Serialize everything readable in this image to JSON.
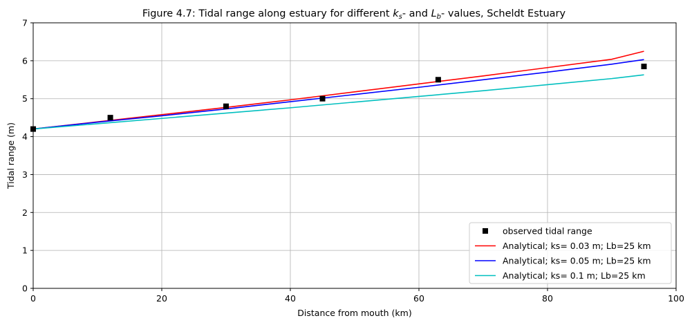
{
  "chart_data": {
    "type": "line",
    "title": {
      "prefix": "Figure 4.7: Tidal range along estuary for different ",
      "k": "k",
      "k_sub": "s",
      "middle": "- and ",
      "L": "L",
      "L_sub": "b",
      "suffix": "- values, Scheldt Estuary"
    },
    "xlabel": "Distance from mouth (km)",
    "ylabel": "Tidal range (m)",
    "xlim": [
      0,
      100
    ],
    "ylim": [
      0,
      7
    ],
    "xticks": [
      0,
      20,
      40,
      60,
      80,
      100
    ],
    "yticks": [
      0,
      1,
      2,
      3,
      4,
      5,
      6,
      7
    ],
    "grid": true,
    "legend_position": "lower-right",
    "observed": {
      "name": "observed tidal range",
      "color": "#000000",
      "x": [
        0,
        12,
        30,
        45,
        63,
        95
      ],
      "y": [
        4.2,
        4.5,
        4.8,
        5.0,
        5.5,
        5.85
      ]
    },
    "series": [
      {
        "name": "Analytical; ks= 0.03 m; Lb=25 km",
        "color": "#ff0000",
        "x": [
          0,
          10,
          20,
          30,
          40,
          50,
          60,
          70,
          80,
          90,
          95
        ],
        "y": [
          4.2,
          4.39,
          4.58,
          4.77,
          4.97,
          5.18,
          5.39,
          5.6,
          5.82,
          6.04,
          6.25
        ]
      },
      {
        "name": "Analytical; ks= 0.05 m; Lb=25 km",
        "color": "#0000ff",
        "x": [
          0,
          10,
          20,
          30,
          40,
          50,
          60,
          70,
          80,
          90,
          95
        ],
        "y": [
          4.2,
          4.38,
          4.55,
          4.73,
          4.92,
          5.11,
          5.3,
          5.5,
          5.7,
          5.91,
          6.03
        ]
      },
      {
        "name": "Analytical; ks= 0.1 m; Lb=25 km",
        "color": "#00bfbf",
        "x": [
          0,
          10,
          20,
          30,
          40,
          50,
          60,
          70,
          80,
          90,
          95
        ],
        "y": [
          4.2,
          4.34,
          4.48,
          4.62,
          4.76,
          4.91,
          5.06,
          5.21,
          5.37,
          5.53,
          5.63
        ]
      }
    ]
  }
}
